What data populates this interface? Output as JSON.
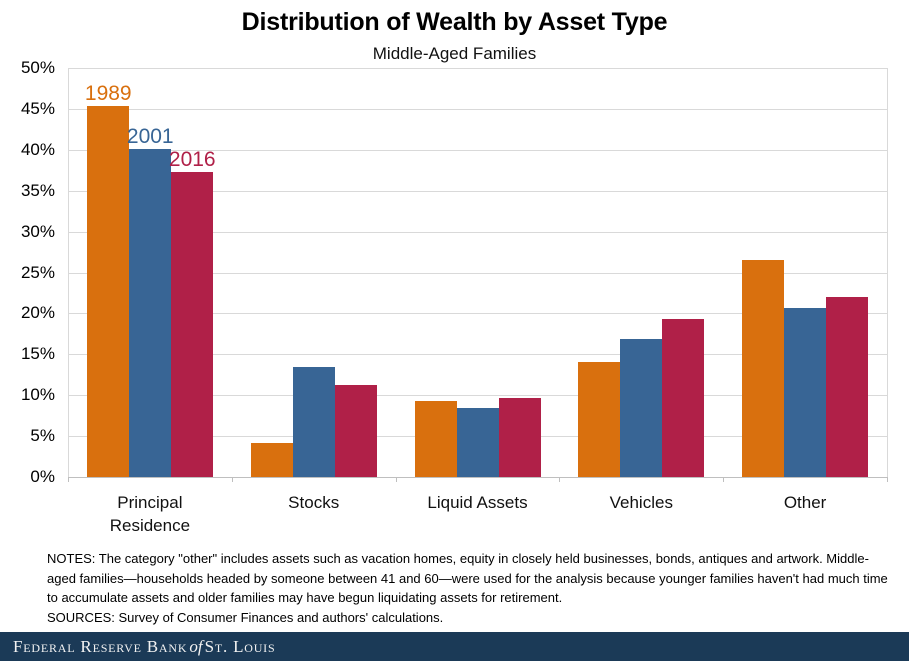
{
  "title": "Distribution of Wealth by Asset Type",
  "subtitle": "Middle-Aged Families",
  "chart_data": {
    "type": "bar",
    "categories": [
      "Principal Residence",
      "Stocks",
      "Liquid Assets",
      "Vehicles",
      "Other"
    ],
    "series": [
      {
        "name": "1989",
        "color": "#D9700E",
        "values": [
          45.4,
          4.2,
          9.3,
          14.0,
          26.5
        ]
      },
      {
        "name": "2001",
        "color": "#386595",
        "values": [
          40.1,
          13.5,
          8.4,
          16.9,
          20.7
        ]
      },
      {
        "name": "2016",
        "color": "#B02048",
        "values": [
          37.3,
          11.3,
          9.6,
          19.3,
          22.0
        ]
      }
    ],
    "ylim": [
      0,
      50
    ],
    "ytick_step": 5,
    "ytick_suffix": "%",
    "ytick_labels": [
      "50%",
      "45%",
      "40%",
      "35%",
      "30%",
      "25%",
      "20%",
      "15%",
      "10%",
      "5%",
      "0%"
    ],
    "grid": true,
    "legend_style": "year labels above first bar group",
    "colors": {
      "gridline": "#d9d9d9",
      "axis": "#bfbfbf"
    }
  },
  "notes": "NOTES: The category \"other\" includes assets such as vacation homes, equity in closely held businesses, bonds, antiques and artwork.  Middle-aged families—households headed by someone between 41 and 60—were used for the analysis because younger families haven't had much time to accumulate assets and older families may have begun liquidating assets for retirement.",
  "sources": "SOURCES: Survey of Consumer Finances and authors' calculations.",
  "footer": {
    "bank": "Federal Reserve Bank",
    "of": "of",
    "city": "St. Louis"
  }
}
